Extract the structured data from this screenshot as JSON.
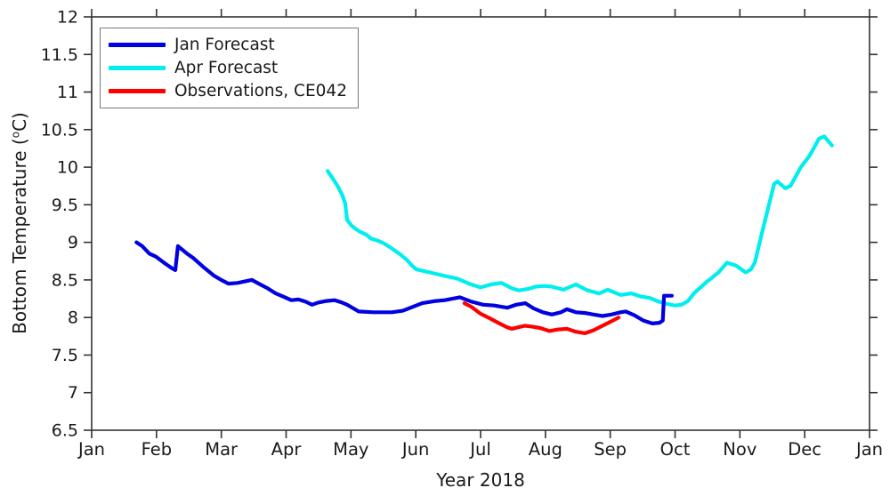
{
  "chart_data": {
    "type": "line",
    "title": "",
    "xlabel": "Year 2018",
    "ylabel": "Bottom Temperature (°C)",
    "ylabel_parts": {
      "prefix": "Bottom Temperature (",
      "sup": "o",
      "suffix": "C)"
    },
    "x_axis": {
      "min": 0,
      "max": 12,
      "tick_labels": [
        "Jan",
        "Feb",
        "Mar",
        "Apr",
        "May",
        "Jun",
        "Jul",
        "Aug",
        "Sep",
        "Oct",
        "Nov",
        "Dec",
        "Jan"
      ]
    },
    "y_axis": {
      "min": 6.5,
      "max": 12,
      "tick_step": 0.5,
      "tick_labels": [
        "6.5",
        "7",
        "7.5",
        "8",
        "8.5",
        "9",
        "9.5",
        "10",
        "10.5",
        "11",
        "11.5",
        "12"
      ]
    },
    "grid": false,
    "legend_position": "top-left",
    "axis_color": "#333333",
    "series": [
      {
        "name": "Jan Forecast",
        "color": "#0000E0",
        "x_unit": "month (0 = Jan 1, 2018)",
        "points": [
          [
            0.69,
            9.0
          ],
          [
            0.78,
            8.95
          ],
          [
            0.89,
            8.85
          ],
          [
            0.99,
            8.81
          ],
          [
            1.13,
            8.72
          ],
          [
            1.23,
            8.66
          ],
          [
            1.29,
            8.63
          ],
          [
            1.33,
            8.95
          ],
          [
            1.47,
            8.85
          ],
          [
            1.57,
            8.79
          ],
          [
            1.74,
            8.66
          ],
          [
            1.88,
            8.56
          ],
          [
            2.02,
            8.49
          ],
          [
            2.11,
            8.45
          ],
          [
            2.25,
            8.46
          ],
          [
            2.47,
            8.5
          ],
          [
            2.6,
            8.44
          ],
          [
            2.71,
            8.39
          ],
          [
            2.84,
            8.32
          ],
          [
            2.98,
            8.27
          ],
          [
            3.08,
            8.23
          ],
          [
            3.19,
            8.24
          ],
          [
            3.3,
            8.21
          ],
          [
            3.4,
            8.17
          ],
          [
            3.5,
            8.2
          ],
          [
            3.62,
            8.22
          ],
          [
            3.75,
            8.23
          ],
          [
            3.86,
            8.2
          ],
          [
            3.94,
            8.17
          ],
          [
            4.12,
            8.08
          ],
          [
            4.35,
            8.07
          ],
          [
            4.63,
            8.07
          ],
          [
            4.8,
            8.09
          ],
          [
            4.95,
            8.14
          ],
          [
            5.1,
            8.19
          ],
          [
            5.31,
            8.22
          ],
          [
            5.45,
            8.23
          ],
          [
            5.68,
            8.27
          ],
          [
            5.86,
            8.21
          ],
          [
            6.04,
            8.17
          ],
          [
            6.21,
            8.16
          ],
          [
            6.41,
            8.13
          ],
          [
            6.55,
            8.17
          ],
          [
            6.69,
            8.19
          ],
          [
            6.82,
            8.12
          ],
          [
            6.96,
            8.07
          ],
          [
            7.1,
            8.04
          ],
          [
            7.24,
            8.07
          ],
          [
            7.33,
            8.11
          ],
          [
            7.47,
            8.07
          ],
          [
            7.61,
            8.06
          ],
          [
            7.74,
            8.04
          ],
          [
            7.88,
            8.02
          ],
          [
            8.02,
            8.04
          ],
          [
            8.16,
            8.07
          ],
          [
            8.24,
            8.08
          ],
          [
            8.37,
            8.03
          ],
          [
            8.51,
            7.96
          ],
          [
            8.65,
            7.92
          ],
          [
            8.76,
            7.93
          ],
          [
            8.81,
            7.96
          ],
          [
            8.83,
            8.29
          ],
          [
            8.95,
            8.29
          ]
        ]
      },
      {
        "name": "Apr Forecast",
        "color": "#00EEEE",
        "x_unit": "month (0 = Jan 1, 2018)",
        "points": [
          [
            3.64,
            9.95
          ],
          [
            3.72,
            9.85
          ],
          [
            3.8,
            9.74
          ],
          [
            3.87,
            9.62
          ],
          [
            3.91,
            9.52
          ],
          [
            3.94,
            9.3
          ],
          [
            4.01,
            9.22
          ],
          [
            4.12,
            9.15
          ],
          [
            4.24,
            9.1
          ],
          [
            4.31,
            9.05
          ],
          [
            4.42,
            9.02
          ],
          [
            4.5,
            8.99
          ],
          [
            4.63,
            8.92
          ],
          [
            4.76,
            8.84
          ],
          [
            4.87,
            8.76
          ],
          [
            4.94,
            8.69
          ],
          [
            5.01,
            8.64
          ],
          [
            5.22,
            8.6
          ],
          [
            5.41,
            8.56
          ],
          [
            5.63,
            8.52
          ],
          [
            5.82,
            8.45
          ],
          [
            6.0,
            8.4
          ],
          [
            6.16,
            8.44
          ],
          [
            6.32,
            8.46
          ],
          [
            6.48,
            8.39
          ],
          [
            6.59,
            8.36
          ],
          [
            6.73,
            8.38
          ],
          [
            6.85,
            8.41
          ],
          [
            6.98,
            8.42
          ],
          [
            7.1,
            8.41
          ],
          [
            7.28,
            8.37
          ],
          [
            7.47,
            8.44
          ],
          [
            7.65,
            8.36
          ],
          [
            7.83,
            8.32
          ],
          [
            7.96,
            8.37
          ],
          [
            8.16,
            8.3
          ],
          [
            8.33,
            8.32
          ],
          [
            8.47,
            8.28
          ],
          [
            8.61,
            8.26
          ],
          [
            8.75,
            8.21
          ],
          [
            8.88,
            8.18
          ],
          [
            9.0,
            8.16
          ],
          [
            9.1,
            8.17
          ],
          [
            9.2,
            8.22
          ],
          [
            9.29,
            8.32
          ],
          [
            9.47,
            8.46
          ],
          [
            9.67,
            8.6
          ],
          [
            9.8,
            8.73
          ],
          [
            9.94,
            8.69
          ],
          [
            10.09,
            8.6
          ],
          [
            10.17,
            8.64
          ],
          [
            10.23,
            8.73
          ],
          [
            10.32,
            9.05
          ],
          [
            10.42,
            9.4
          ],
          [
            10.53,
            9.78
          ],
          [
            10.58,
            9.81
          ],
          [
            10.7,
            9.72
          ],
          [
            10.78,
            9.75
          ],
          [
            10.94,
            10.0
          ],
          [
            11.08,
            10.16
          ],
          [
            11.22,
            10.38
          ],
          [
            11.3,
            10.41
          ],
          [
            11.42,
            10.29
          ]
        ]
      },
      {
        "name": "Observations, CE042",
        "color": "#FF0000",
        "x_unit": "month (0 = Jan 1, 2018)",
        "points": [
          [
            5.75,
            8.19
          ],
          [
            5.86,
            8.14
          ],
          [
            6.0,
            8.05
          ],
          [
            6.14,
            7.99
          ],
          [
            6.27,
            7.93
          ],
          [
            6.41,
            7.87
          ],
          [
            6.48,
            7.85
          ],
          [
            6.58,
            7.87
          ],
          [
            6.68,
            7.89
          ],
          [
            6.78,
            7.88
          ],
          [
            6.92,
            7.86
          ],
          [
            7.06,
            7.82
          ],
          [
            7.19,
            7.84
          ],
          [
            7.33,
            7.85
          ],
          [
            7.47,
            7.81
          ],
          [
            7.61,
            7.79
          ],
          [
            7.74,
            7.83
          ],
          [
            7.88,
            7.89
          ],
          [
            8.02,
            7.95
          ],
          [
            8.13,
            8.0
          ]
        ]
      }
    ]
  }
}
